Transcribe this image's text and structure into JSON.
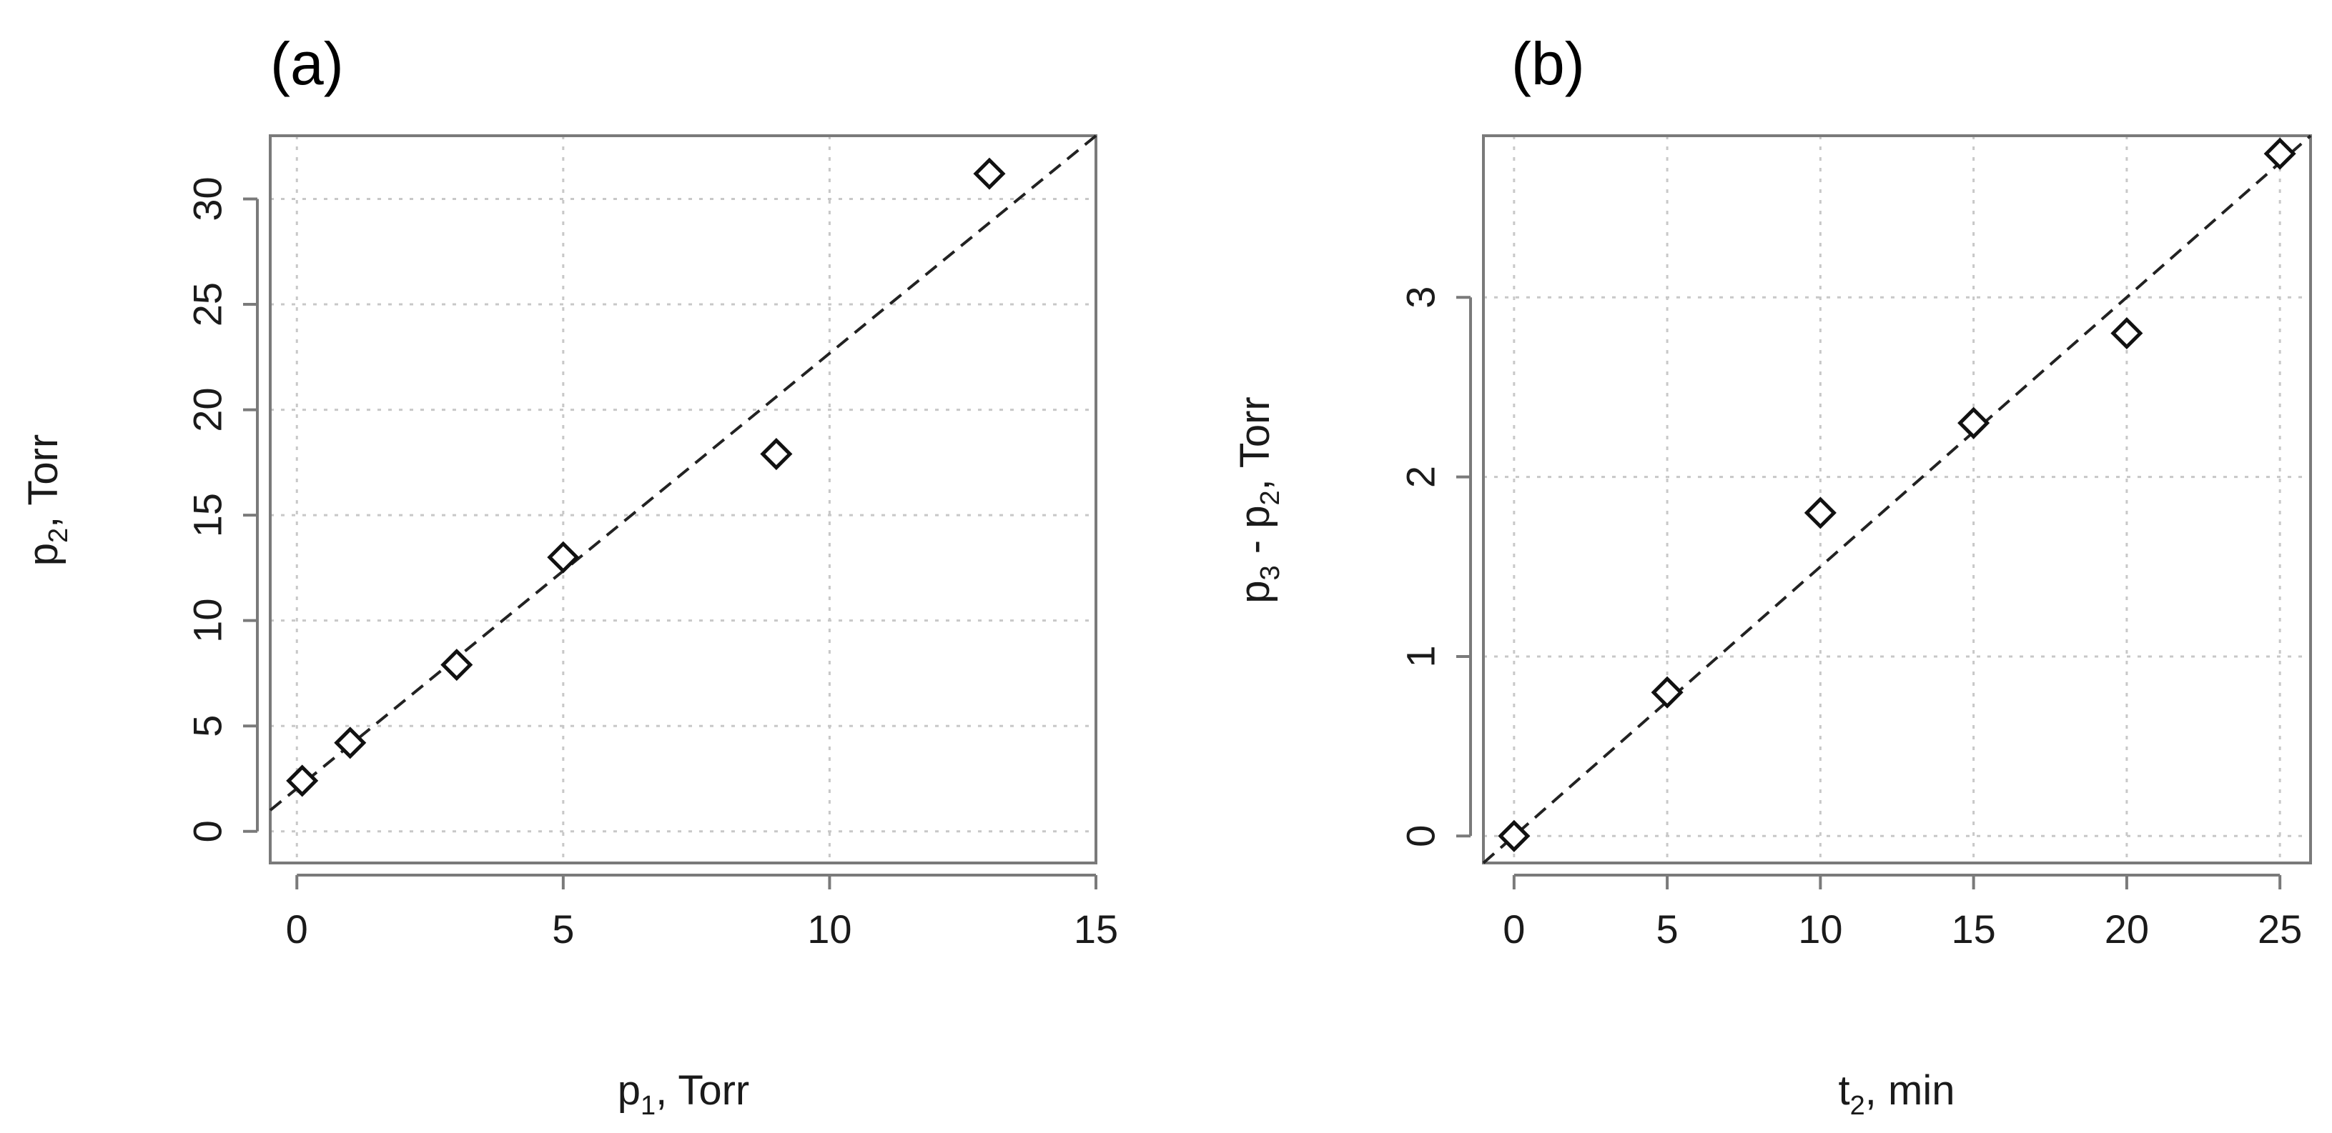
{
  "chart_data": [
    {
      "panel_label": "(a)",
      "type": "scatter",
      "xlabel": {
        "main": "p",
        "sub": "1",
        "rest": ", Torr"
      },
      "ylabel": {
        "main": "p",
        "sub": "2",
        "rest": ", Torr"
      },
      "xlim": [
        -0.5,
        15
      ],
      "ylim": [
        -1.5,
        33
      ],
      "x_ticks": [
        0,
        5,
        10,
        15
      ],
      "y_ticks": [
        0,
        5,
        10,
        15,
        20,
        25,
        30
      ],
      "x_tick_labels": [
        "0",
        "5",
        "10",
        "15"
      ],
      "y_tick_labels": [
        "0",
        "5",
        "10",
        "15",
        "20",
        "25",
        "30"
      ],
      "grid": true,
      "marker": "diamond",
      "series": [
        {
          "x": [
            0.1,
            1,
            3,
            5,
            9,
            13
          ],
          "y": [
            2.4,
            4.2,
            7.9,
            13,
            17.9,
            31.2
          ]
        }
      ],
      "fit_line": {
        "style": "dashed",
        "from": [
          -0.5,
          1.0
        ],
        "to": [
          15,
          33
        ]
      }
    },
    {
      "panel_label": "(b)",
      "type": "scatter",
      "xlabel": {
        "main": "t",
        "sub": "2",
        "rest": ", min"
      },
      "ylabel": {
        "main": "p",
        "sub": "3",
        "rest": " - p",
        "sub2": "2",
        "rest2": ", Torr"
      },
      "xlim": [
        -1,
        26
      ],
      "ylim": [
        -0.15,
        3.9
      ],
      "x_ticks": [
        0,
        5,
        10,
        15,
        20,
        25
      ],
      "y_ticks": [
        0,
        1,
        2,
        3
      ],
      "x_tick_labels": [
        "0",
        "5",
        "10",
        "15",
        "20",
        "25"
      ],
      "y_tick_labels": [
        "0",
        "1",
        "2",
        "3"
      ],
      "grid": true,
      "marker": "diamond",
      "series": [
        {
          "x": [
            0,
            5,
            10,
            15,
            20,
            25
          ],
          "y": [
            0,
            0.8,
            1.8,
            2.3,
            2.8,
            3.8
          ]
        }
      ],
      "fit_line": {
        "style": "dashed",
        "from": [
          -1,
          -0.15
        ],
        "to": [
          26,
          3.9
        ]
      }
    }
  ]
}
